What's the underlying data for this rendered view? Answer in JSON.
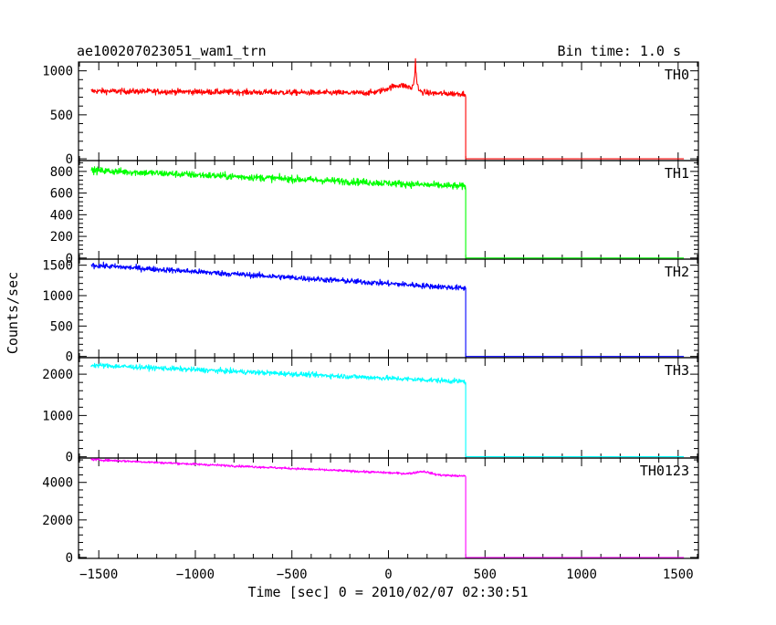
{
  "header": {
    "title": "ae100207023051_wam1_trn",
    "bin_time": "Bin time: 1.0 s"
  },
  "chart_data": {
    "type": "line",
    "xlabel": "Time [sec] 0 = 2010/02/07 02:30:51",
    "ylabel": "Counts/sec",
    "xlim": [
      -1605,
      1605
    ],
    "x_ticks": [
      -1500,
      -1000,
      -500,
      0,
      500,
      1000,
      1500
    ],
    "x_tick_labels": [
      "−1500",
      "−1000",
      "−500",
      "0",
      "500",
      "1000",
      "1500"
    ],
    "data_end_x": 400,
    "x_start": -1540,
    "x_end": 1530,
    "grid": false,
    "panels": [
      {
        "name": "TH0",
        "color": "#ff0000",
        "ylim": [
          -20,
          1100
        ],
        "y_ticks": [
          0,
          500,
          1000
        ],
        "y_tick_labels": [
          "0",
          "500",
          "1000"
        ],
        "level_start": 770,
        "level_end": 740,
        "noise": 32,
        "after_value": 0,
        "burst": {
          "x": 140,
          "peak": 1080
        },
        "bump": {
          "x": 60,
          "height": 90,
          "width": 90
        }
      },
      {
        "name": "TH1",
        "color": "#00ff00",
        "ylim": [
          -10,
          900
        ],
        "y_ticks": [
          0,
          200,
          400,
          600,
          800
        ],
        "y_tick_labels": [
          "0",
          "200",
          "400",
          "600",
          "800"
        ],
        "level_start": 810,
        "level_end": 660,
        "noise": 32,
        "after_value": 0
      },
      {
        "name": "TH2",
        "color": "#0000ff",
        "ylim": [
          -20,
          1600
        ],
        "y_ticks": [
          0,
          500,
          1000,
          1500
        ],
        "y_tick_labels": [
          "0",
          "500",
          "1000",
          "1500"
        ],
        "level_start": 1500,
        "level_end": 1120,
        "noise": 45,
        "after_value": 0
      },
      {
        "name": "TH3",
        "color": "#00ffff",
        "ylim": [
          -30,
          2400
        ],
        "y_ticks": [
          0,
          1000,
          2000
        ],
        "y_tick_labels": [
          "0",
          "1000",
          "2000"
        ],
        "level_start": 2220,
        "level_end": 1820,
        "noise": 60,
        "after_value": 0
      },
      {
        "name": "TH0123",
        "color": "#ff00ff",
        "ylim": [
          -50,
          5300
        ],
        "y_ticks": [
          0,
          2000,
          4000
        ],
        "y_tick_labels": [
          "0",
          "2000",
          "4000"
        ],
        "level_start": 5220,
        "level_end": 4330,
        "noise": 60,
        "after_value": 0,
        "bump": {
          "x": 180,
          "height": 150,
          "width": 50
        }
      }
    ]
  }
}
